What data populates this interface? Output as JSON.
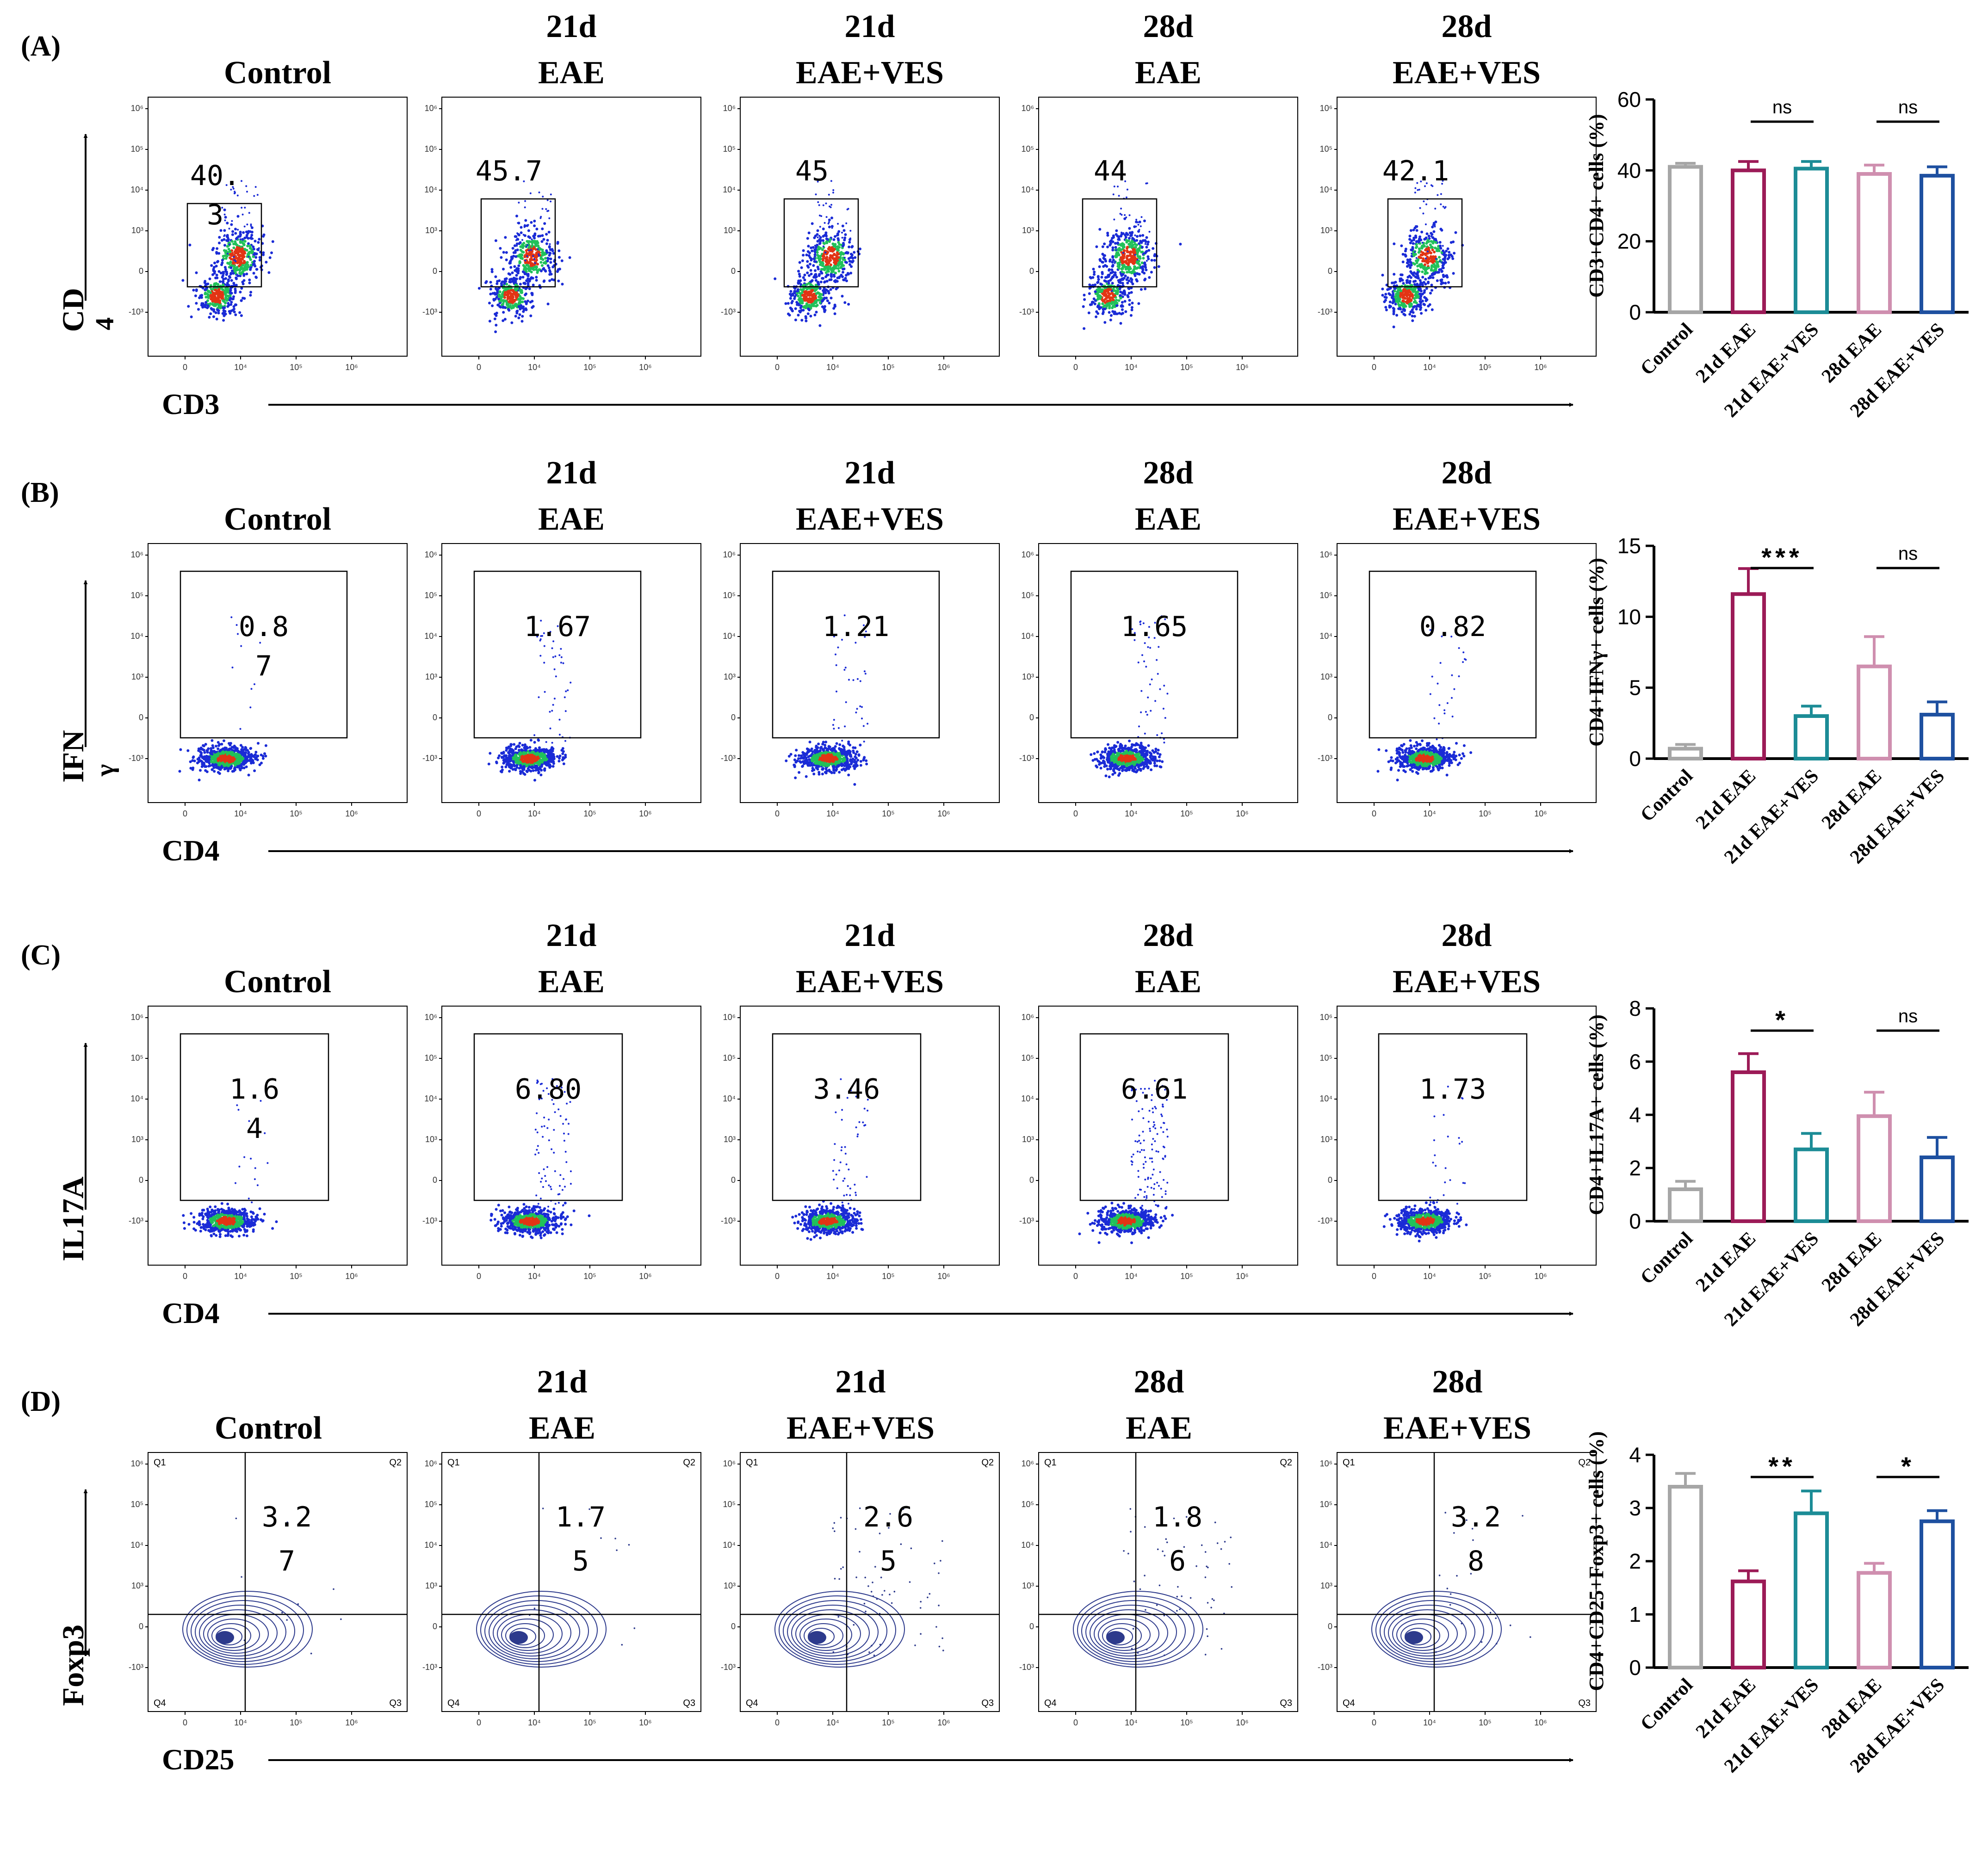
{
  "colors": {
    "control": "#a6a6a6",
    "eae21": "#9c1b57",
    "ves21": "#1c8c96",
    "eae28": "#cf8faf",
    "ves28": "#1e50a0",
    "density_low": "#1a2bd6",
    "density_mid": "#21c15a",
    "density_high": "#e23414",
    "contour": "#2d3a8c"
  },
  "icons": {
    "axis_arrow": "arrow-icon"
  },
  "panels": [
    {
      "label": "(A)",
      "groups": [
        {
          "line1": "",
          "line2": "Control"
        },
        {
          "line1": "21d",
          "line2": "EAE"
        },
        {
          "line1": "21d",
          "line2": "EAE+VES"
        },
        {
          "line1": "28d",
          "line2": "EAE"
        },
        {
          "line1": "28d",
          "line2": "EAE+VES"
        }
      ],
      "plot_type": "density",
      "gate_type": "rect",
      "y_axis_label": [
        "CD",
        "4"
      ],
      "x_axis_label": "CD3",
      "gate_values": [
        [
          "40.",
          "3"
        ],
        [
          "45.7"
        ],
        [
          "45"
        ],
        [
          "44"
        ],
        [
          "42.1"
        ]
      ]
    },
    {
      "label": "(B)",
      "groups": [
        {
          "line1": "",
          "line2": "Control"
        },
        {
          "line1": "21d",
          "line2": "EAE"
        },
        {
          "line1": "21d",
          "line2": "EAE+VES"
        },
        {
          "line1": "28d",
          "line2": "EAE"
        },
        {
          "line1": "28d",
          "line2": "EAE+VES"
        }
      ],
      "plot_type": "density",
      "gate_type": "rect",
      "y_axis_label": [
        "IFN",
        "γ"
      ],
      "x_axis_label": "CD4",
      "gate_values": [
        [
          "0.8",
          "7"
        ],
        [
          "1.67"
        ],
        [
          "1.21"
        ],
        [
          "1.65"
        ],
        [
          "0.82"
        ]
      ]
    },
    {
      "label": "(C)",
      "groups": [
        {
          "line1": "",
          "line2": "Control"
        },
        {
          "line1": "21d",
          "line2": "EAE"
        },
        {
          "line1": "21d",
          "line2": "EAE+VES"
        },
        {
          "line1": "28d",
          "line2": "EAE"
        },
        {
          "line1": "28d",
          "line2": "EAE+VES"
        }
      ],
      "plot_type": "density",
      "gate_type": "rect",
      "y_axis_label": [
        "IL17A"
      ],
      "x_axis_label": "CD4",
      "gate_values": [
        [
          "1.6",
          "4"
        ],
        [
          "6.80"
        ],
        [
          "3.46"
        ],
        [
          "6.61"
        ],
        [
          "1.73"
        ]
      ]
    },
    {
      "label": "(D)",
      "groups": [
        {
          "line1": "",
          "line2": "Control"
        },
        {
          "line1": "21d",
          "line2": "EAE"
        },
        {
          "line1": "21d",
          "line2": "EAE+VES"
        },
        {
          "line1": "28d",
          "line2": "EAE"
        },
        {
          "line1": "28d",
          "line2": "EAE+VES"
        }
      ],
      "plot_type": "contour",
      "gate_type": "quadrant",
      "quadrant_labels": [
        "Q1",
        "Q2",
        "Q3",
        "Q4"
      ],
      "y_axis_label": [
        "Foxp3"
      ],
      "x_axis_label": "CD25",
      "gate_values": [
        [
          "3.2",
          "7"
        ],
        [
          "1.7",
          "5"
        ],
        [
          "2.6",
          "5"
        ],
        [
          "1.8",
          "6"
        ],
        [
          "3.2",
          "8"
        ]
      ]
    }
  ],
  "chart_data": [
    {
      "type": "bar",
      "title": "",
      "ylabel": "CD3+CD4+ cells (%)",
      "xlabel": "",
      "categories": [
        "Control",
        "21d EAE",
        "21d EAE+VES",
        "28d EAE",
        "28d EAE+VES"
      ],
      "values": [
        41,
        40,
        40.5,
        39,
        38.5
      ],
      "errors": [
        1,
        2.5,
        2,
        2.5,
        2.5
      ],
      "ylim": [
        0,
        60
      ],
      "yticks": [
        "0",
        "20",
        "40",
        "60"
      ],
      "significance": [
        {
          "from": "21d EAE",
          "to": "21d EAE+VES",
          "label": "ns"
        },
        {
          "from": "28d EAE",
          "to": "28d EAE+VES",
          "label": "ns"
        }
      ]
    },
    {
      "type": "bar",
      "title": "",
      "ylabel": "CD4+IFNγ+ cells (%)",
      "xlabel": "",
      "categories": [
        "Control",
        "21d EAE",
        "21d EAE+VES",
        "28d EAE",
        "28d EAE+VES"
      ],
      "values": [
        0.7,
        11.6,
        3,
        6.5,
        3.1
      ],
      "errors": [
        0.3,
        1.8,
        0.7,
        2.1,
        0.9
      ],
      "ylim": [
        0,
        15
      ],
      "yticks": [
        "0",
        "5",
        "10",
        "15"
      ],
      "significance": [
        {
          "from": "21d EAE",
          "to": "21d EAE+VES",
          "label": "***"
        },
        {
          "from": "28d EAE",
          "to": "28d EAE+VES",
          "label": "ns"
        }
      ]
    },
    {
      "type": "bar",
      "title": "",
      "ylabel": "CD4+IL17A+ cells (%)",
      "xlabel": "",
      "categories": [
        "Control",
        "21d EAE",
        "21d EAE+VES",
        "28d EAE",
        "28d EAE+VES"
      ],
      "values": [
        1.2,
        5.6,
        2.7,
        3.95,
        2.4
      ],
      "errors": [
        0.3,
        0.7,
        0.6,
        0.9,
        0.75
      ],
      "ylim": [
        0,
        8
      ],
      "yticks": [
        "0",
        "2",
        "4",
        "6",
        "8"
      ],
      "significance": [
        {
          "from": "21d EAE",
          "to": "21d EAE+VES",
          "label": "*"
        },
        {
          "from": "28d EAE",
          "to": "28d EAE+VES",
          "label": "ns"
        }
      ]
    },
    {
      "type": "bar",
      "title": "",
      "ylabel": "CD4+CD25+Foxp3+ cells (%)",
      "xlabel": "",
      "categories": [
        "Control",
        "21d EAE",
        "21d EAE+VES",
        "28d EAE",
        "28d EAE+VES"
      ],
      "values": [
        3.4,
        1.62,
        2.9,
        1.78,
        2.75
      ],
      "errors": [
        0.25,
        0.2,
        0.42,
        0.18,
        0.2
      ],
      "ylim": [
        0,
        4
      ],
      "yticks": [
        "0",
        "1",
        "2",
        "3",
        "4"
      ],
      "significance": [
        {
          "from": "21d EAE",
          "to": "21d EAE+VES",
          "label": "**"
        },
        {
          "from": "28d EAE",
          "to": "28d EAE+VES",
          "label": "*"
        }
      ]
    }
  ]
}
